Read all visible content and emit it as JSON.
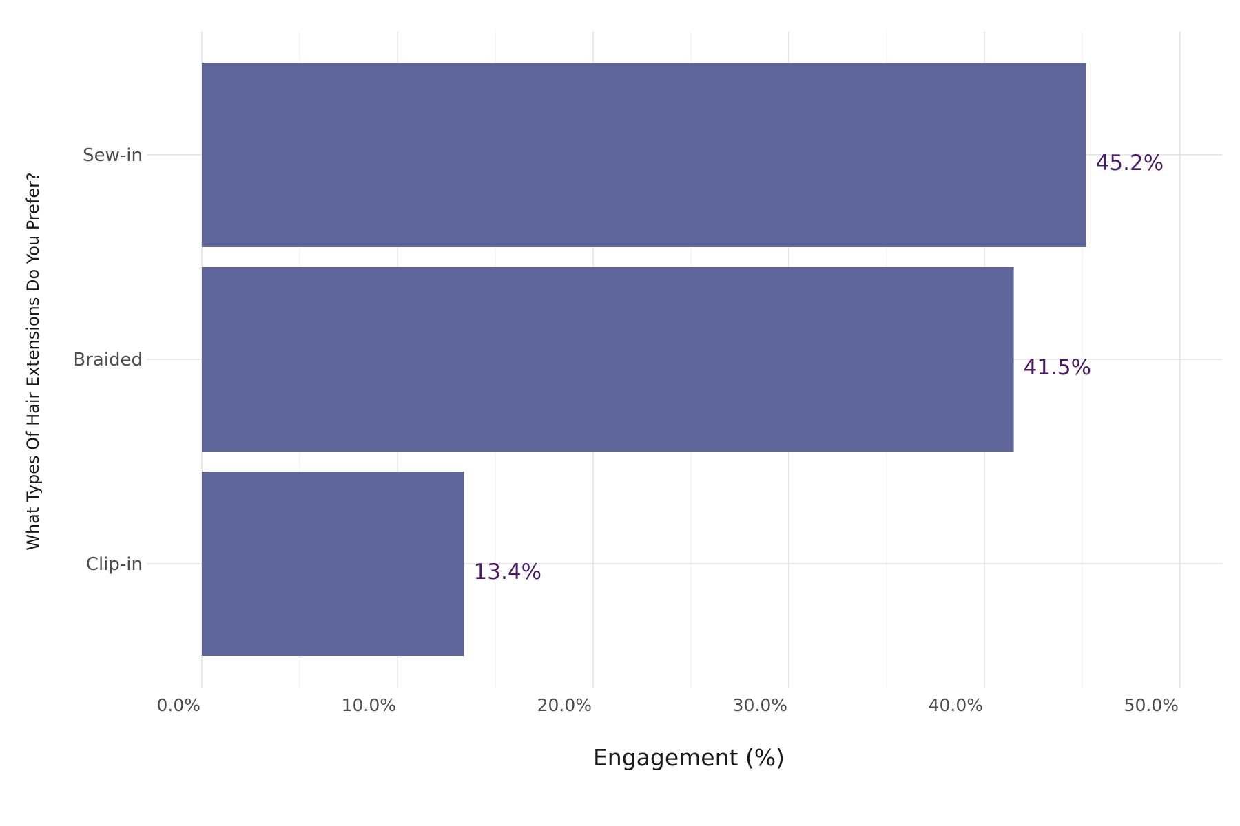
{
  "chart_data": {
    "type": "bar",
    "orientation": "horizontal",
    "categories": [
      "Sew-in",
      "Braided",
      "Clip-in"
    ],
    "values": [
      45.2,
      41.5,
      13.4
    ],
    "value_labels": [
      "45.2%",
      "41.5%",
      "13.4%"
    ],
    "title": "",
    "xlabel": "Engagement (%)",
    "ylabel": "What Types Of Hair Extensions Do You Prefer?",
    "xlim": [
      0,
      50
    ],
    "xticks": [
      0,
      10,
      20,
      30,
      40,
      50
    ],
    "xtick_labels": [
      "0.0%",
      "10.0%",
      "20.0%",
      "30.0%",
      "40.0%",
      "50.0%"
    ],
    "grid": true,
    "colors": {
      "bar": "#5e6599",
      "data_label": "#4a1a63",
      "grid_major": "#e0e0e0",
      "grid_minor": "#f1f1f1"
    }
  }
}
